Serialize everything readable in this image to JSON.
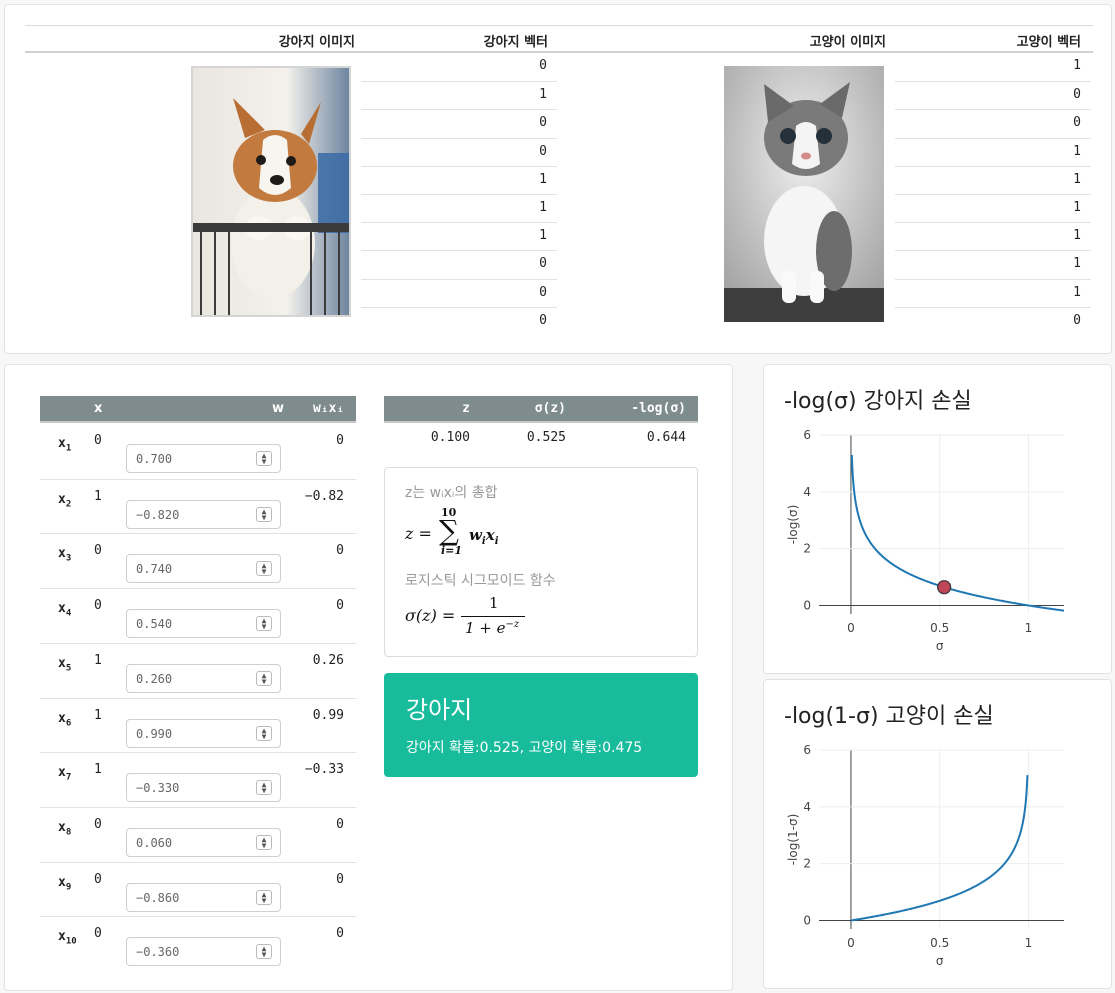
{
  "top": {
    "headers": [
      "강아지 이미지",
      "강아지 벡터",
      "고양이 이미지",
      "고양이 벡터"
    ],
    "dog_image": "puppy-photo",
    "cat_image": "kitten-photo",
    "dog_vector": [
      "0",
      "1",
      "0",
      "0",
      "1",
      "1",
      "1",
      "0",
      "0",
      "0"
    ],
    "cat_vector": [
      "1",
      "0",
      "0",
      "1",
      "1",
      "1",
      "1",
      "1",
      "1",
      "0"
    ]
  },
  "weights": {
    "headers": {
      "x": "x",
      "w": "w",
      "wx": "wᵢxᵢ"
    },
    "rows": [
      {
        "label": "x",
        "sub": "1",
        "x": "0",
        "w": "0.700",
        "wx": "0"
      },
      {
        "label": "x",
        "sub": "2",
        "x": "1",
        "w": "−0.820",
        "wx": "−0.82"
      },
      {
        "label": "x",
        "sub": "3",
        "x": "0",
        "w": "0.740",
        "wx": "0"
      },
      {
        "label": "x",
        "sub": "4",
        "x": "0",
        "w": "0.540",
        "wx": "0"
      },
      {
        "label": "x",
        "sub": "5",
        "x": "1",
        "w": "0.260",
        "wx": "0.26"
      },
      {
        "label": "x",
        "sub": "6",
        "x": "1",
        "w": "0.990",
        "wx": "0.99"
      },
      {
        "label": "x",
        "sub": "7",
        "x": "1",
        "w": "−0.330",
        "wx": "−0.33"
      },
      {
        "label": "x",
        "sub": "8",
        "x": "0",
        "w": "0.060",
        "wx": "0"
      },
      {
        "label": "x",
        "sub": "9",
        "x": "0",
        "w": "−0.860",
        "wx": "0"
      },
      {
        "label": "x",
        "sub": "10",
        "x": "0",
        "w": "−0.360",
        "wx": "0"
      }
    ]
  },
  "summary": {
    "headers": {
      "z": "z",
      "sigma": "σ(z)",
      "loss": "-log(σ)"
    },
    "z": "0.100",
    "sigma": "0.525",
    "loss": "0.644"
  },
  "formulas": {
    "z_caption": "z는 wᵢxᵢ의 총합",
    "sigmoid_caption": "로지스틱 시그모이드 함수"
  },
  "result": {
    "title": "강아지",
    "detail": "강아지 확률:0.525, 고양이 확률:0.475",
    "color": "#18bc9c"
  },
  "charts": {
    "dog": {
      "title": "-log(σ) 강아지 손실",
      "xlabel": "σ",
      "ylabel": "-log(σ)"
    },
    "cat": {
      "title": "-log(1-σ) 고양이 손실",
      "xlabel": "σ",
      "ylabel": "-log(1-σ)"
    }
  },
  "chart_data": [
    {
      "type": "line",
      "title": "-log(σ) 강아지 손실",
      "xlabel": "σ",
      "ylabel": "-log(σ)",
      "xlim": [
        -0.18,
        1.2
      ],
      "ylim": [
        -0.3,
        6
      ],
      "x_ticks": [
        "0",
        "0.5",
        "1"
      ],
      "y_ticks": [
        "0",
        "2",
        "4",
        "6"
      ],
      "x_tick_values": [
        0,
        0.5,
        1
      ],
      "y_tick_values": [
        0,
        2,
        4,
        6
      ],
      "series": [
        {
          "function": "-log(x)",
          "x_range": [
            0.005,
            1.2
          ]
        }
      ],
      "marker": {
        "x": 0.525,
        "y": 0.644,
        "color": "#c0465a"
      },
      "line_color": "#1f77b4",
      "grid": true
    },
    {
      "type": "line",
      "title": "-log(1-σ) 고양이 손실",
      "xlabel": "σ",
      "ylabel": "-log(1-σ)",
      "xlim": [
        -0.18,
        1.2
      ],
      "ylim": [
        -0.3,
        6
      ],
      "x_ticks": [
        "0",
        "0.5",
        "1"
      ],
      "y_ticks": [
        "0",
        "2",
        "4",
        "6"
      ],
      "x_tick_values": [
        0,
        0.5,
        1
      ],
      "y_tick_values": [
        0,
        2,
        4,
        6
      ],
      "series": [
        {
          "function": "-log(1-x)",
          "x_range": [
            0,
            0.994
          ]
        }
      ],
      "line_color": "#1f77b4",
      "grid": true
    }
  ]
}
